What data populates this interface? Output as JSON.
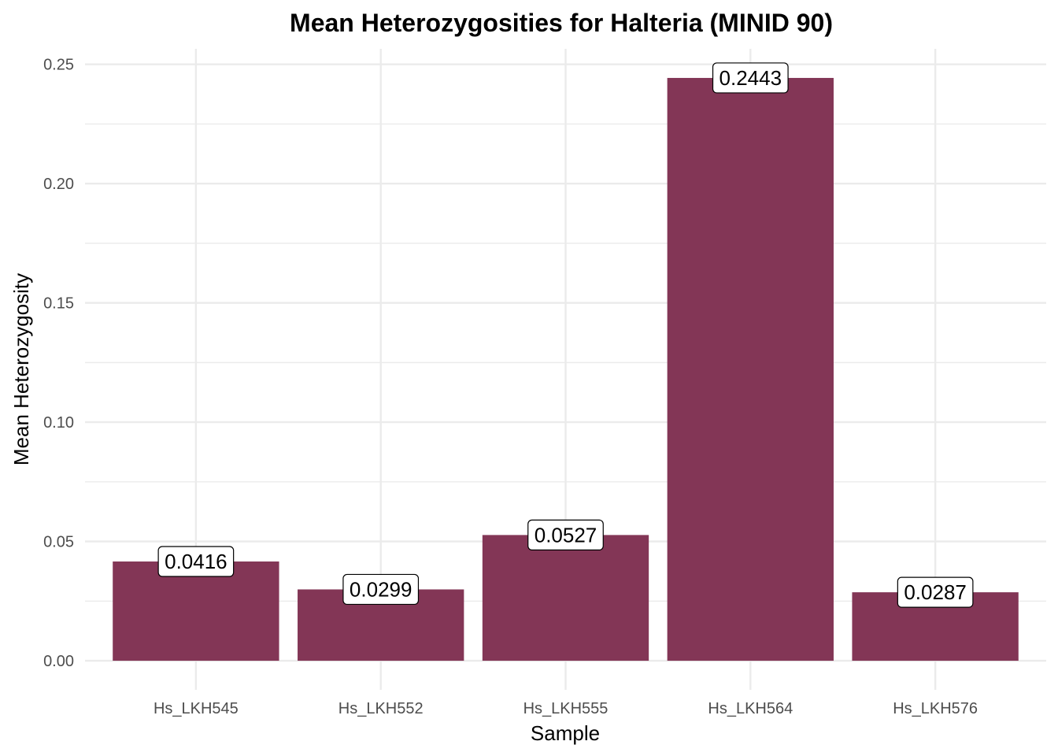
{
  "chart_data": {
    "type": "bar",
    "title": "Mean Heterozygosities for Halteria (MINID 90)",
    "xlabel": "Sample",
    "ylabel": "Mean Heterozygosity",
    "categories": [
      "Hs_LKH545",
      "Hs_LKH552",
      "Hs_LKH555",
      "Hs_LKH564",
      "Hs_LKH576"
    ],
    "values": [
      0.0416,
      0.0299,
      0.0527,
      0.2443,
      0.0287
    ],
    "data_labels": [
      "0.0416",
      "0.0299",
      "0.0527",
      "0.2443",
      "0.0287"
    ],
    "y_ticks": [
      0.0,
      0.05,
      0.1,
      0.15,
      0.2,
      0.25
    ],
    "y_tick_labels": [
      "0.00",
      "0.05",
      "0.10",
      "0.15",
      "0.20",
      "0.25"
    ],
    "ylim": [
      -0.0122,
      0.2565
    ],
    "grid": true,
    "legend": "none",
    "bar_color": "#833656",
    "grid_color": "#ebebeb"
  }
}
